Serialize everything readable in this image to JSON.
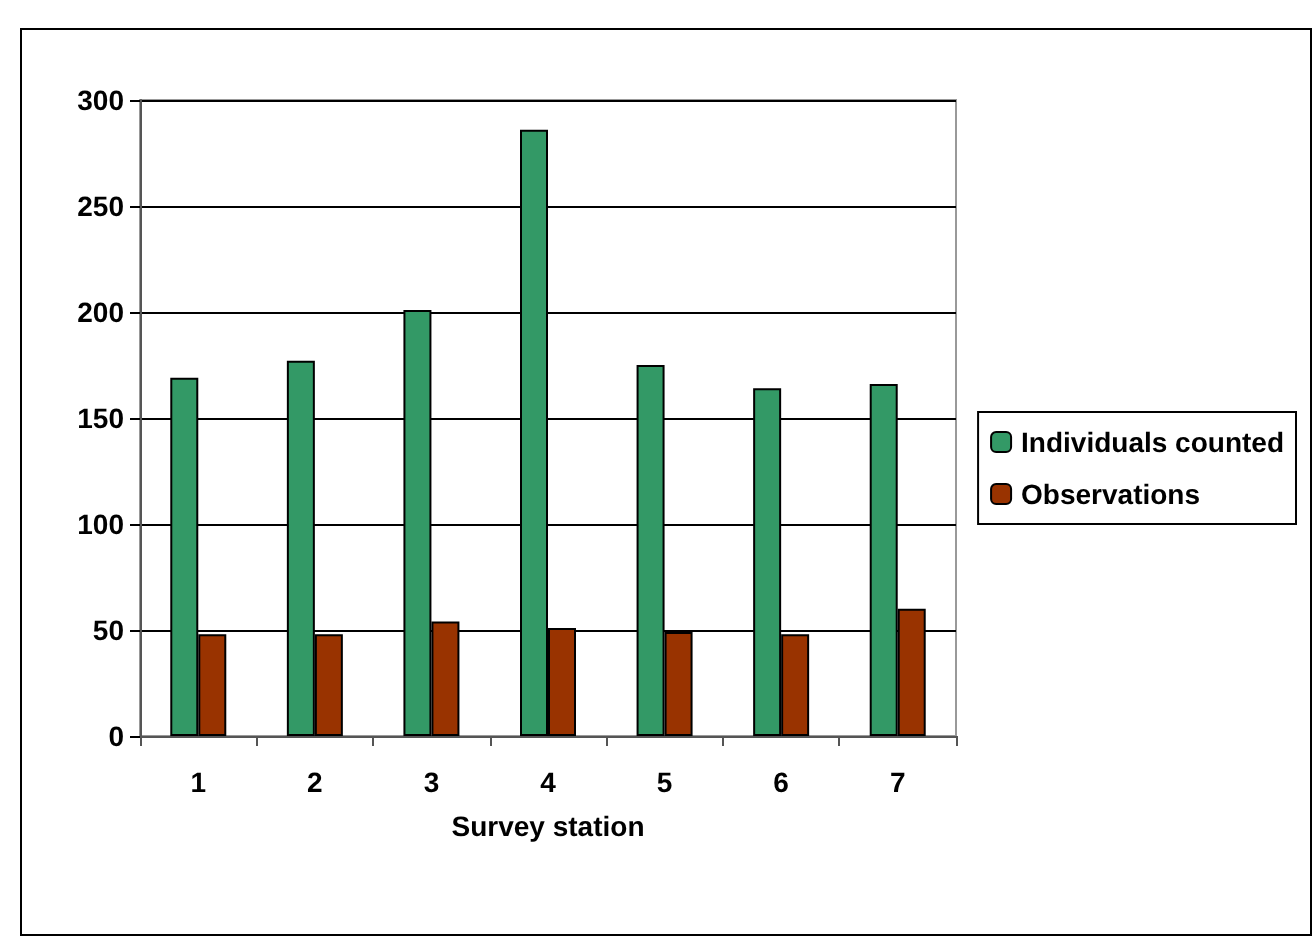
{
  "chart_data": {
    "type": "bar",
    "xlabel": "Survey station",
    "categories": [
      "1",
      "2",
      "3",
      "4",
      "5",
      "6",
      "7"
    ],
    "series": [
      {
        "name": "Individuals counted",
        "color": "#339966",
        "values": [
          169,
          177,
          201,
          286,
          175,
          164,
          166
        ]
      },
      {
        "name": "Observations",
        "color": "#993300",
        "values": [
          48,
          48,
          54,
          51,
          49,
          48,
          60
        ]
      }
    ],
    "ylim": [
      0,
      300
    ],
    "yticks": [
      0,
      50,
      100,
      150,
      200,
      250,
      300
    ],
    "grid": "y",
    "legend": "right"
  }
}
